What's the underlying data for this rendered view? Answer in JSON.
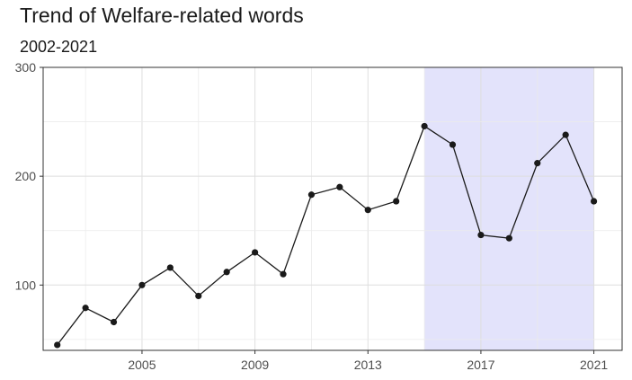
{
  "chart_data": {
    "type": "line",
    "title": "Trend of Welfare-related words",
    "subtitle": "2002-2021",
    "xlabel": "",
    "ylabel": "",
    "x": [
      2002,
      2003,
      2004,
      2005,
      2006,
      2007,
      2008,
      2009,
      2010,
      2011,
      2012,
      2013,
      2014,
      2015,
      2016,
      2017,
      2018,
      2019,
      2020,
      2021
    ],
    "values": [
      45,
      79,
      66,
      100,
      116,
      90,
      112,
      130,
      110,
      183,
      190,
      169,
      177,
      246,
      229,
      146,
      143,
      212,
      238,
      177
    ],
    "xlim": [
      2001.5,
      2022.0
    ],
    "ylim": [
      40,
      300
    ],
    "xticks": [
      2005,
      2009,
      2013,
      2017,
      2021
    ],
    "yticks": [
      100,
      200,
      300
    ],
    "xtick_labels": [
      "2005",
      "2009",
      "2013",
      "2017",
      "2021"
    ],
    "ytick_labels": [
      "100",
      "200",
      "300"
    ],
    "highlight_range": [
      2015,
      2021
    ],
    "highlight_color": "#e3e3fb",
    "line_color": "#1a1a1a",
    "grid": true
  }
}
